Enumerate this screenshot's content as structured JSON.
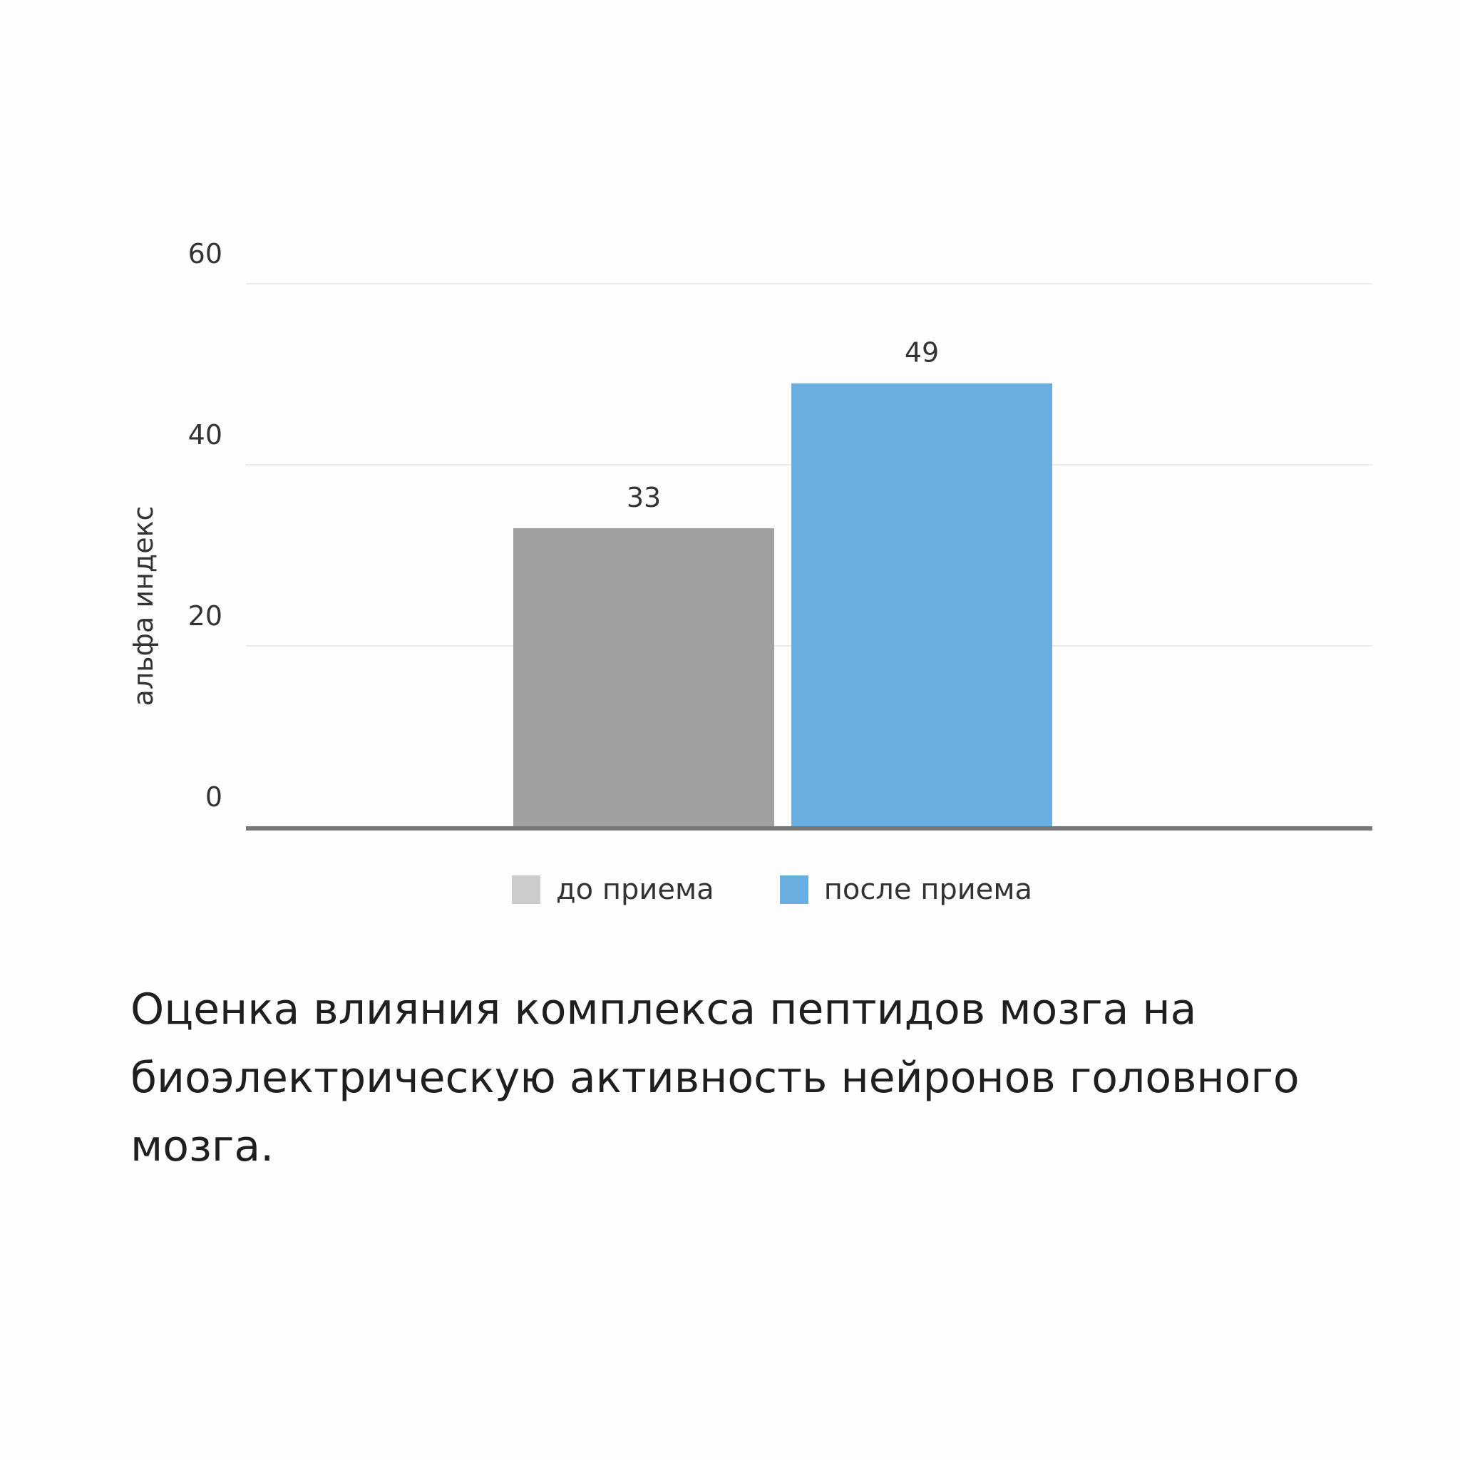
{
  "chart_data": {
    "type": "bar",
    "categories": [
      "до приема",
      "после приема"
    ],
    "values": [
      33,
      49
    ],
    "colors": [
      "#a0a0a0",
      "#6aaee0"
    ],
    "legend_colors": [
      "#cccccc",
      "#6aaee0"
    ],
    "title": "",
    "xlabel": "",
    "ylabel": "альфа индекс",
    "ylim": [
      0,
      60
    ],
    "yticks": [
      0,
      20,
      40,
      60
    ],
    "grid": true,
    "legend_position": "bottom",
    "data_labels": true
  },
  "legend": {
    "items": [
      {
        "label": "до приема",
        "color": "#cccccc"
      },
      {
        "label": "после приема",
        "color": "#6aaee0"
      }
    ]
  },
  "caption": {
    "text": "Оценка влияния комплекса пептидов мозга на биоэлектрическую активность нейронов головного мозга."
  }
}
